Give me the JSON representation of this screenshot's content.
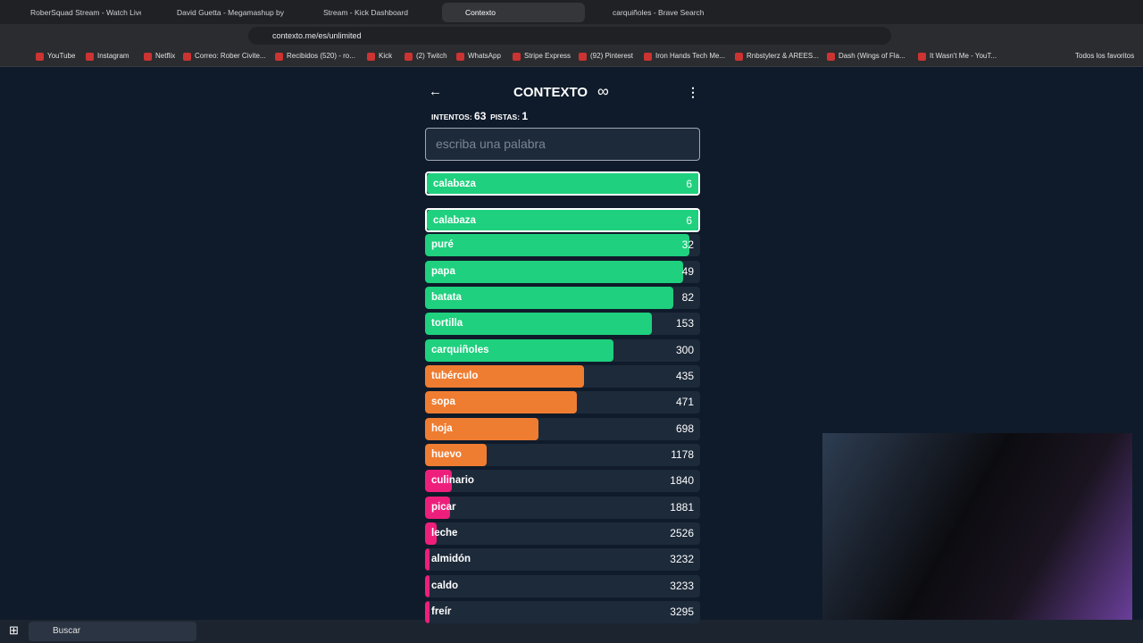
{
  "browser": {
    "tabs": [
      "RoberSquad Stream - Watch Live",
      "David Guetta - Megamashup by",
      "Stream - Kick Dashboard",
      "Contexto",
      "carquiñoles - Brave Search"
    ],
    "url": "contexto.me/es/unlimited",
    "bookmarks": [
      "YouTube",
      "Instagram",
      "Netflix",
      "Correo: Rober Civite...",
      "Recibidos (520) - ro...",
      "Kick",
      "(2) Twitch",
      "WhatsApp",
      "Stripe Express",
      "(92) Pinterest",
      "Iron Hands Tech Me...",
      "Rnbstylerz & AREES...",
      "Dash (Wings of Fla...",
      "It Wasn't Me - YouT..."
    ],
    "all_bookmarks": "Todos los favoritos"
  },
  "game": {
    "title": "CONTEXTO",
    "attempts_label": "INTENTOS:",
    "attempts": 63,
    "hints_label": "PISTAS:",
    "hints": 1,
    "placeholder": "escriba una palabra",
    "last_guess": {
      "word": "calabaza",
      "rank": 6,
      "color": "#1fd07e"
    },
    "guesses": [
      {
        "word": "calabaza",
        "rank": 6,
        "color": "#1fd07e"
      },
      {
        "word": "puré",
        "rank": 32,
        "color": "#1fd07e"
      },
      {
        "word": "papa",
        "rank": 49,
        "color": "#1fd07e"
      },
      {
        "word": "batata",
        "rank": 82,
        "color": "#1fd07e"
      },
      {
        "word": "tortilla",
        "rank": 153,
        "color": "#1fd07e"
      },
      {
        "word": "carquiñoles",
        "rank": 300,
        "color": "#1fd07e"
      },
      {
        "word": "tubérculo",
        "rank": 435,
        "color": "#ef7d31"
      },
      {
        "word": "sopa",
        "rank": 471,
        "color": "#ef7d31"
      },
      {
        "word": "hoja",
        "rank": 698,
        "color": "#ef7d31"
      },
      {
        "word": "huevo",
        "rank": 1178,
        "color": "#ef7d31"
      },
      {
        "word": "culinario",
        "rank": 1840,
        "color": "#ee1f7c"
      },
      {
        "word": "picar",
        "rank": 1881,
        "color": "#ee1f7c"
      },
      {
        "word": "leche",
        "rank": 2526,
        "color": "#ee1f7c"
      },
      {
        "word": "almidón",
        "rank": 3232,
        "color": "#ee1f7c"
      },
      {
        "word": "caldo",
        "rank": 3233,
        "color": "#ee1f7c"
      },
      {
        "word": "freír",
        "rank": 3295,
        "color": "#ee1f7c"
      }
    ]
  },
  "taskbar": {
    "search": "Buscar"
  }
}
